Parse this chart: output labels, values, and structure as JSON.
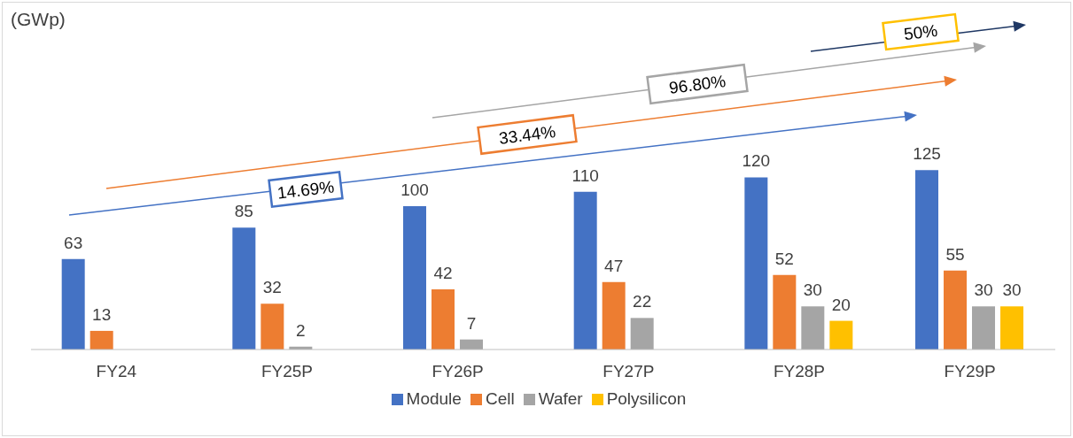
{
  "chart_data": {
    "type": "bar",
    "categories": [
      "FY24",
      "FY25P",
      "FY26P",
      "FY27P",
      "FY28P",
      "FY29P"
    ],
    "series": [
      {
        "name": "Module",
        "color": "#4472c4",
        "values": [
          63,
          85,
          100,
          110,
          120,
          125
        ]
      },
      {
        "name": "Cell",
        "color": "#ed7d31",
        "values": [
          13,
          32,
          42,
          47,
          52,
          55
        ]
      },
      {
        "name": "Wafer",
        "color": "#a5a5a5",
        "values": [
          null,
          2,
          7,
          22,
          30,
          30
        ]
      },
      {
        "name": "Polysilicon",
        "color": "#ffc000",
        "values": [
          null,
          null,
          null,
          null,
          20,
          30
        ]
      }
    ],
    "data_labels": true,
    "legend": "bottom",
    "grid": false,
    "annotations": [
      "(GWp)",
      "14.69%",
      "33.44%",
      "96.80%",
      "50%"
    ]
  }
}
